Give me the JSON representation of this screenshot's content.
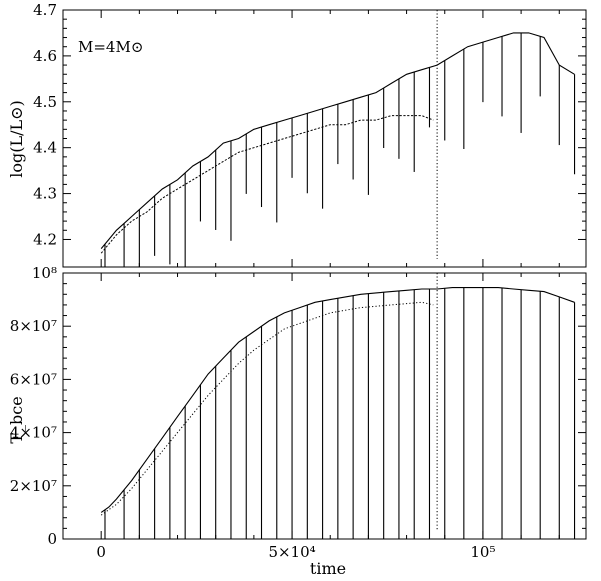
{
  "chart_data": [
    {
      "type": "line",
      "panel": "top",
      "xlabel": "",
      "ylabel": "log(L/L⊙)",
      "xlim": [
        -10000,
        127000
      ],
      "ylim": [
        4.14,
        4.7
      ],
      "y_ticks": [
        {
          "value": 4.2,
          "label": "4.2"
        },
        {
          "value": 4.3,
          "label": "4.3"
        },
        {
          "value": 4.4,
          "label": "4.4"
        },
        {
          "value": 4.5,
          "label": "4.5"
        },
        {
          "value": 4.6,
          "label": "4.6"
        },
        {
          "value": 4.7,
          "label": "4.7"
        }
      ],
      "annotation": "M=4M⊙",
      "vline_x": 88000,
      "series": [
        {
          "style": "solid",
          "x": [
            0,
            2000,
            4000,
            8000,
            12000,
            16000,
            20000,
            24000,
            28000,
            32000,
            36000,
            40000,
            44000,
            48000,
            52000,
            56000,
            60000,
            64000,
            68000,
            72000,
            76000,
            80000,
            84000,
            88000,
            92000,
            96000,
            100000,
            104000,
            108000,
            112000,
            116000,
            120000,
            124000
          ],
          "y": [
            4.18,
            4.2,
            4.22,
            4.25,
            4.28,
            4.31,
            4.33,
            4.36,
            4.38,
            4.41,
            4.42,
            4.44,
            4.45,
            4.46,
            4.47,
            4.48,
            4.49,
            4.5,
            4.51,
            4.52,
            4.54,
            4.56,
            4.57,
            4.58,
            4.6,
            4.62,
            4.63,
            4.64,
            4.65,
            4.65,
            4.64,
            4.58,
            4.56
          ]
        },
        {
          "style": "dashed",
          "x": [
            0,
            2000,
            4000,
            8000,
            12000,
            16000,
            20000,
            24000,
            28000,
            32000,
            36000,
            40000,
            44000,
            48000,
            52000,
            56000,
            60000,
            64000,
            68000,
            72000,
            76000,
            80000,
            84000,
            87000
          ],
          "y": [
            4.17,
            4.19,
            4.21,
            4.24,
            4.26,
            4.29,
            4.31,
            4.33,
            4.35,
            4.37,
            4.39,
            4.4,
            4.41,
            4.42,
            4.43,
            4.44,
            4.45,
            4.45,
            4.46,
            4.46,
            4.47,
            4.47,
            4.47,
            4.46
          ]
        }
      ],
      "pulse_x": [
        1000,
        6000,
        10000,
        14000,
        18000,
        22000,
        26000,
        30000,
        34000,
        38000,
        42000,
        46000,
        50000,
        54000,
        58000,
        62000,
        66000,
        70000,
        74000,
        78000,
        82000,
        86000,
        90000,
        95000,
        100000,
        105000,
        110000,
        115000,
        120000,
        124000
      ]
    },
    {
      "type": "line",
      "panel": "bottom",
      "xlabel": "time",
      "ylabel": "T_bce",
      "xlim": [
        -10000,
        127000
      ],
      "ylim": [
        0,
        100000000
      ],
      "x_ticks": [
        {
          "value": 0,
          "label": "0"
        },
        {
          "value": 50000,
          "label": "5×10⁴"
        },
        {
          "value": 100000,
          "label": "10⁵"
        }
      ],
      "y_ticks": [
        {
          "value": 0,
          "label": "0"
        },
        {
          "value": 20000000,
          "label": "2×10⁷"
        },
        {
          "value": 40000000,
          "label": "4×10⁷"
        },
        {
          "value": 60000000,
          "label": "6×10⁷"
        },
        {
          "value": 80000000,
          "label": "8×10⁷"
        },
        {
          "value": 100000000,
          "label": "10⁸"
        }
      ],
      "vline_x": 88000,
      "series": [
        {
          "style": "solid",
          "x": [
            0,
            2000,
            4000,
            8000,
            12000,
            16000,
            20000,
            24000,
            28000,
            32000,
            36000,
            40000,
            44000,
            48000,
            52000,
            56000,
            60000,
            64000,
            68000,
            72000,
            76000,
            80000,
            84000,
            88000,
            92000,
            96000,
            100000,
            104000,
            108000,
            112000,
            116000,
            120000,
            124000
          ],
          "y": [
            10000000,
            12000000,
            15000000,
            22000000,
            30000000,
            38000000,
            46000000,
            54000000,
            62000000,
            68000000,
            74000000,
            78000000,
            82000000,
            85000000,
            87000000,
            89000000,
            90000000,
            91000000,
            92000000,
            92500000,
            93000000,
            93500000,
            94000000,
            94000000,
            94500000,
            94500000,
            94500000,
            94500000,
            94000000,
            93500000,
            93000000,
            91000000,
            89000000
          ]
        },
        {
          "style": "dotted",
          "x": [
            0,
            2000,
            4000,
            8000,
            12000,
            16000,
            20000,
            24000,
            28000,
            32000,
            36000,
            40000,
            44000,
            48000,
            52000,
            56000,
            60000,
            64000,
            68000,
            72000,
            76000,
            80000,
            84000,
            87000
          ],
          "y": [
            9000000,
            11000000,
            13000000,
            19000000,
            26000000,
            33000000,
            40000000,
            47000000,
            54000000,
            60000000,
            66000000,
            71000000,
            75000000,
            79000000,
            81000000,
            83000000,
            85000000,
            86000000,
            87000000,
            87500000,
            88000000,
            88500000,
            89000000,
            88000000
          ]
        }
      ],
      "pulse_x": [
        1000,
        6000,
        10000,
        14000,
        18000,
        22000,
        26000,
        30000,
        34000,
        38000,
        42000,
        46000,
        50000,
        54000,
        58000,
        62000,
        66000,
        70000,
        74000,
        78000,
        82000,
        86000,
        90000,
        95000,
        100000,
        105000,
        110000,
        115000,
        120000,
        124000
      ]
    }
  ]
}
